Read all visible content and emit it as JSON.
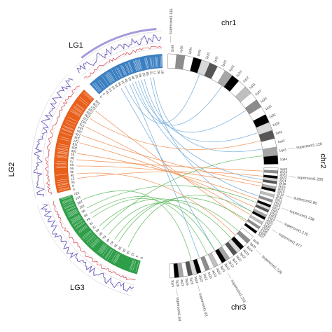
{
  "colors": {
    "lg1": "#3a7fc1",
    "lg2": "#e8601c",
    "lg3": "#2e9e48",
    "link_blue": "#6aa6d6",
    "link_orange": "#ef8a4a",
    "link_green": "#5cb85c",
    "red_track": "#d9434b",
    "purple_track": "#6b5bb8",
    "grey_track": "#b9b9c8"
  },
  "groups": {
    "lg1": "LG1",
    "lg2": "LG2",
    "lg3": "LG3",
    "chr1": "chr1",
    "chr2": "chr2",
    "chr3": "chr3"
  },
  "supercontigs": [
    "supercont1.116",
    "supercont1.120",
    "supercont1.200",
    "supercont1.90",
    "supercont1.238",
    "supercont1.170",
    "supercont1.477",
    "supercont1.229",
    "supercont1.231",
    "supercont1.93",
    "supercont1.64"
  ],
  "marker_labels": {
    "lg1": [
      "0",
      "5",
      "10",
      "14",
      "19",
      "24",
      "29",
      "34",
      "39",
      "43",
      "48",
      "53",
      "58",
      "63",
      "68",
      "72",
      "77",
      "82",
      "87"
    ],
    "lg2": [
      "0",
      "9",
      "18",
      "27",
      "36",
      "45",
      "55",
      "64",
      "73",
      "82",
      "91",
      "100",
      "109",
      "118",
      "127",
      "136",
      "145",
      "155",
      "164",
      "173",
      "182",
      "191",
      "200",
      "209",
      "218",
      "227",
      "236",
      "245"
    ],
    "lg3": [
      "0",
      "6",
      "12",
      "18",
      "24",
      "30",
      "36",
      "42",
      "48",
      "54",
      "60",
      "66",
      "72",
      "78",
      "84",
      "90",
      "96",
      "102",
      "108",
      "114",
      "120"
    ],
    "chr1_bands": [
      "1p36",
      "1p35",
      "1p34",
      "1p33",
      "1p32",
      "1p31",
      "1p22",
      "1p21",
      "1p13",
      "1q12",
      "1q21",
      "1q23",
      "1q24",
      "1q25",
      "1q31",
      "1q32",
      "1q41",
      "1q42",
      "1q43",
      "1q44"
    ],
    "chr2_bands": [
      "2p25",
      "2p24",
      "2p23",
      "2p22",
      "2p21",
      "2p16",
      "2p15",
      "2p14",
      "2p13",
      "2p12",
      "2p11",
      "2q11",
      "2q12",
      "2q13",
      "2q14",
      "2q21",
      "2q22",
      "2q23",
      "2q24",
      "2q31",
      "2q32",
      "2q33",
      "2q34",
      "2q35",
      "2q36",
      "2q37"
    ],
    "chr3_bands": [
      "3p26",
      "3p25",
      "3p24",
      "3p23",
      "3p22",
      "3p21",
      "3p14",
      "3p13",
      "3p12",
      "3q11",
      "3q12",
      "3q13",
      "3q21",
      "3q22",
      "3q23",
      "3q24",
      "3q25",
      "3q26",
      "3q27",
      "3q28",
      "3q29"
    ]
  }
}
